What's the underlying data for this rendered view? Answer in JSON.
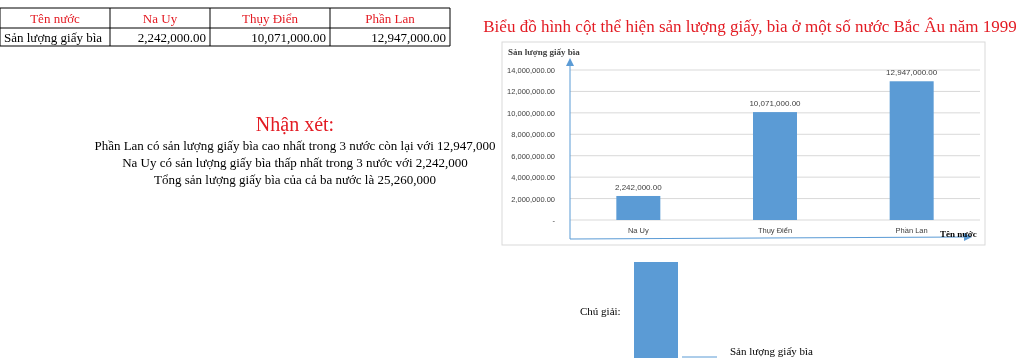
{
  "chart_data": {
    "type": "bar",
    "title": "Biểu đồ hình cột thể hiện sản lượng giấy, bìa ở một số nước Bắc Âu năm 1999",
    "xlabel": "Tên nước",
    "ylabel": "Sản lượng giấy bìa",
    "legend_title": "Chú giải:",
    "categories": [
      "Na Uy",
      "Thụy Điển",
      "Phần Lan"
    ],
    "series": [
      {
        "name": "Sản lượng giấy bìa",
        "color": "#5b9bd5",
        "values": [
          2242000,
          10071000,
          12947000
        ],
        "value_labels": [
          "2,242,000.00",
          "10,071,000.00",
          "12,947,000.00"
        ]
      }
    ],
    "ylim": [
      0,
      14000000
    ],
    "yticks": [
      {
        "value": 0,
        "label": "-"
      },
      {
        "value": 2000000,
        "label": "2,000,000.00"
      },
      {
        "value": 4000000,
        "label": "4,000,000.00"
      },
      {
        "value": 6000000,
        "label": "6,000,000.00"
      },
      {
        "value": 8000000,
        "label": "8,000,000.00"
      },
      {
        "value": 10000000,
        "label": "10,000,000.00"
      },
      {
        "value": 12000000,
        "label": "12,000,000.00"
      },
      {
        "value": 14000000,
        "label": "14,000,000.00"
      }
    ],
    "grid": "y",
    "legend": "bottom",
    "annotations": [
      "Nhận xét:",
      "Phần Lan có sản lượng giấy bìa cao nhất trong 3 nước còn lại với 12,947,000",
      "Na Uy có sản lượng giấy bìa thấp nhất trong 3 nước với 2,242,000",
      "Tổng sản lượng giấy bìa của cả ba nước là 25,260,000"
    ]
  }
}
